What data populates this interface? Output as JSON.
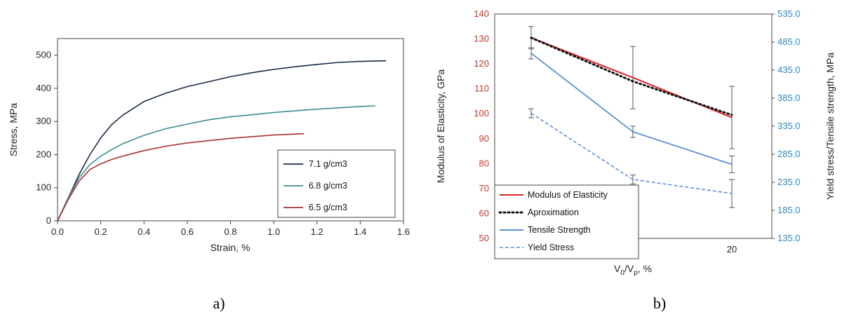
{
  "chart_data": [
    {
      "type": "line",
      "panel_label": "a)",
      "xlabel": "Strain, %",
      "ylabel": "Stress, MPa",
      "xlim": [
        0,
        1.6
      ],
      "ylim": [
        0,
        550
      ],
      "x_ticks": [
        "0.0",
        "0.2",
        "0.4",
        "0.6",
        "0.8",
        "1.0",
        "1.2",
        "1.4",
        "1.6"
      ],
      "y_ticks": [
        "0",
        "100",
        "200",
        "300",
        "400",
        "500"
      ],
      "grid": false,
      "legend_position": "lower-right",
      "series": [
        {
          "name": "7.1 g/cm3",
          "color": "#1b2a44",
          "x": [
            0,
            0.05,
            0.1,
            0.15,
            0.2,
            0.25,
            0.3,
            0.4,
            0.5,
            0.6,
            0.7,
            0.8,
            0.9,
            1.0,
            1.1,
            1.2,
            1.3,
            1.4,
            1.52
          ],
          "y": [
            0,
            70,
            140,
            200,
            250,
            290,
            318,
            360,
            385,
            405,
            420,
            435,
            447,
            457,
            465,
            472,
            478,
            481,
            483
          ]
        },
        {
          "name": "6.8 g/cm3",
          "color": "#3a8c96",
          "x": [
            0,
            0.05,
            0.1,
            0.15,
            0.2,
            0.25,
            0.3,
            0.4,
            0.5,
            0.6,
            0.7,
            0.8,
            0.9,
            1.0,
            1.1,
            1.2,
            1.3,
            1.4,
            1.47
          ],
          "y": [
            0,
            70,
            130,
            170,
            195,
            215,
            232,
            258,
            278,
            292,
            305,
            314,
            320,
            327,
            332,
            337,
            341,
            345,
            347
          ]
        },
        {
          "name": "6.5 g/cm3",
          "color": "#a8322f",
          "x": [
            0,
            0.05,
            0.1,
            0.15,
            0.2,
            0.25,
            0.3,
            0.4,
            0.5,
            0.6,
            0.7,
            0.8,
            0.9,
            1.0,
            1.14
          ],
          "y": [
            0,
            65,
            120,
            155,
            172,
            185,
            195,
            212,
            225,
            235,
            242,
            249,
            254,
            259,
            263
          ]
        }
      ]
    },
    {
      "type": "line",
      "panel_label": "b)",
      "categories": [
        "9.5",
        "15",
        "20"
      ],
      "xlabel_main": "V",
      "xlabel_sub1": "0",
      "xlabel_mid": "/V",
      "xlabel_sub2": "p",
      "xlabel_tail": ", %",
      "ylabel_left": "Modulus of Elasticity, GPa",
      "ylabel_right": "Yield stress/Tensile strength, MPa",
      "ylim_left": [
        50,
        140
      ],
      "ylim_right": [
        135,
        535
      ],
      "y_ticks_left": [
        "50",
        "60",
        "70",
        "80",
        "90",
        "100",
        "110",
        "120",
        "130",
        "140"
      ],
      "y_ticks_right": [
        "135.0",
        "185.0",
        "235.0",
        "285.0",
        "335.0",
        "385.0",
        "435.0",
        "485.0",
        "535.0"
      ],
      "left_axis_color": "#c0392b",
      "right_axis_color": "#2e86c1",
      "grid": false,
      "legend_position": "lower-left",
      "series": [
        {
          "name": "Modulus of Elasticity",
          "axis": "left",
          "color": "#d62728",
          "style": "solid",
          "values": [
            130.5,
            114.5,
            98.5
          ],
          "err": [
            4.5,
            12.5,
            12.5
          ]
        },
        {
          "name": "Aproximation",
          "axis": "left",
          "color": "#111111",
          "style": "dotted",
          "values": [
            130.5,
            113.0,
            99.5
          ],
          "err": []
        },
        {
          "name": "Tensile Strength",
          "axis": "right",
          "color": "#5b8fd6",
          "style": "solid",
          "values": [
            465,
            325,
            267
          ],
          "err": [
            10,
            10,
            15
          ]
        },
        {
          "name": "Yield Stress",
          "axis": "right",
          "color": "#5b8fd6",
          "style": "dashed",
          "values": [
            358,
            240,
            215
          ],
          "err": [
            8,
            8,
            25
          ]
        }
      ]
    }
  ]
}
